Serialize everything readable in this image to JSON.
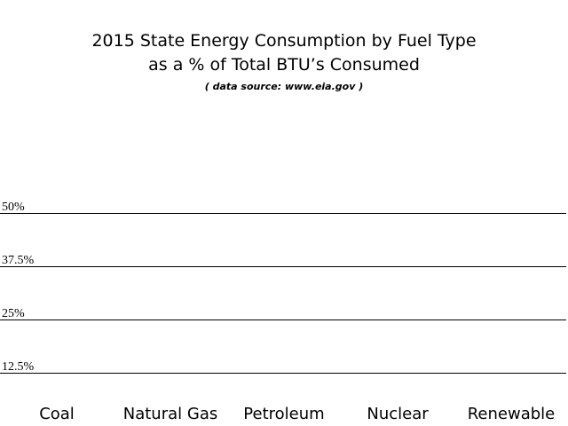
{
  "chart_data": {
    "type": "bar",
    "title": [
      "2015 State Energy Consumption by Fuel Type",
      "as a % of Total BTU’s Consumed"
    ],
    "source": "( data source: www.eia.gov )",
    "categories": [
      "Coal",
      "Natural Gas",
      "Petroleum",
      "Nuclear",
      "Renewable"
    ],
    "ylim": [
      0,
      50
    ],
    "yticks": [
      {
        "value": 12.5,
        "label": "12.5%"
      },
      {
        "value": 25,
        "label": "25%"
      },
      {
        "value": 37.5,
        "label": "37.5%"
      },
      {
        "value": 50,
        "label": "50%"
      }
    ],
    "grid": true
  }
}
